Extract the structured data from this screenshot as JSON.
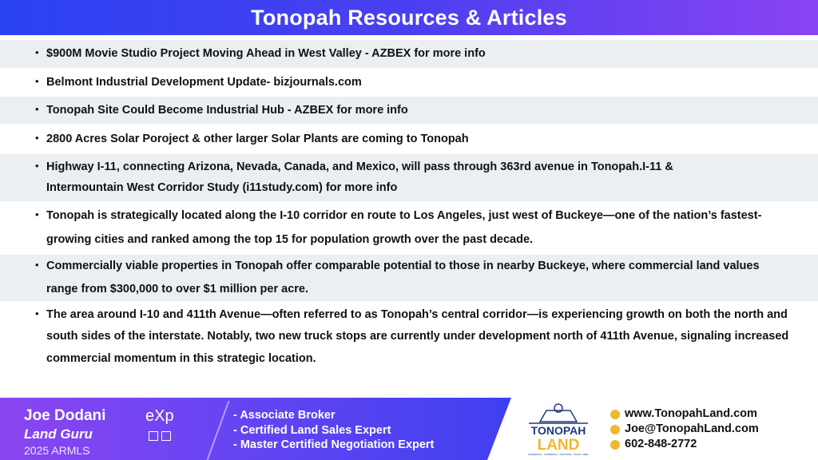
{
  "header": {
    "title": "Tonopah Resources & Articles"
  },
  "articles": [
    {
      "text": "$900M Movie Studio Project Moving Ahead in West Valley - AZBEX for more info"
    },
    {
      "text": "Belmont Industrial Development Update- bizjournals.com"
    },
    {
      "text": "Tonopah Site Could Become Industrial Hub - AZBEX for more info"
    },
    {
      "text": "2800 Acres Solar Poroject & other larger Solar Plants are coming to Tonopah"
    },
    {
      "text": "Highway I-11, connecting Arizona, Nevada, Canada, and Mexico, will pass through 363rd avenue in Tonopah.I-11 & Intermountain West Corridor Study (i11study.com) for more info"
    },
    {
      "text": "Tonopah is strategically located along the I-10 corridor en route to Los Angeles, just west of Buckeye—one of the nation’s fastest-growing cities and ranked among the top 15 for population growth over the past decade."
    },
    {
      "text": "Commercially viable properties in Tonopah offer comparable potential to those in nearby Buckeye, where commercial land values range from $300,000 to over $1 million per acre."
    },
    {
      "text": "The area around I-10 and 411th Avenue—often referred to as Tonopah’s central corridor—is experiencing growth on both the north and south sides of the interstate. Notably, two new truck stops are currently under development north of 411th Avenue, signaling increased commercial momentum in this strategic location."
    }
  ],
  "footer": {
    "name": "Joe Dodani",
    "tagline": "Land Guru",
    "watermark": "2025 ARMLS",
    "brokerage": "eXp",
    "roles": [
      "- Associate Broker",
      "- Certified Land Sales Expert",
      "- Master Certified Negotiation Expert"
    ],
    "logo": {
      "line1": "TONOPAH",
      "line2": "LAND",
      "sub": "RESIDENTIAL · COMMERCIAL · INDUSTRIAL · SOLAR · FARM"
    },
    "contacts": [
      {
        "icon": "globe-icon",
        "text": "www.TonopahLand.com"
      },
      {
        "icon": "email-icon",
        "text": "Joe@TonopahLand.com"
      },
      {
        "icon": "phone-icon",
        "text": "602-848-2772"
      }
    ],
    "colors": {
      "accent": "#f2b632",
      "navy": "#1f3a78",
      "purple": "#8a45f0",
      "blue": "#3f40f0"
    }
  }
}
